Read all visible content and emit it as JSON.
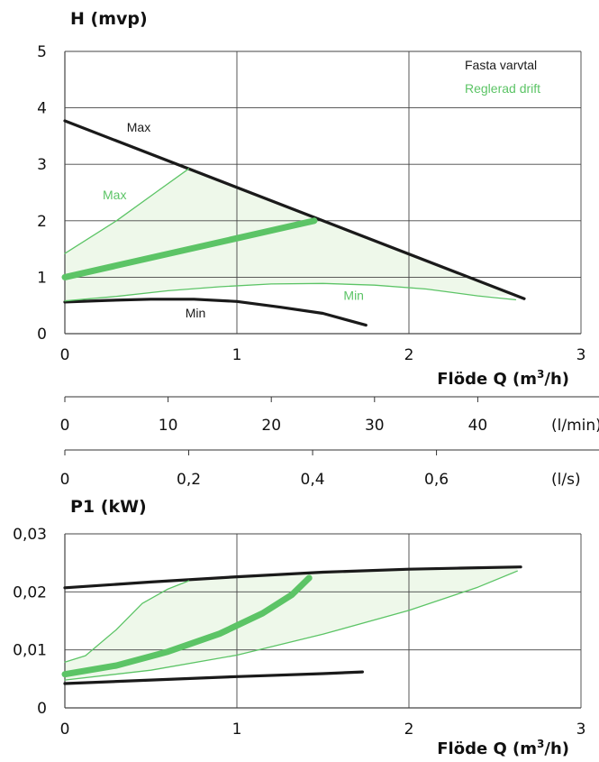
{
  "colors": {
    "fixed": "#1a1a1a",
    "regulated": "#5cc466",
    "regulated_fill": "#eef8ea",
    "grid": "#444444"
  },
  "chart_data": [
    {
      "type": "line",
      "title": "",
      "ylabel": "H (mvp)",
      "xlabel": "Flöde Q (m³/h)",
      "xlim": [
        0,
        3
      ],
      "ylim": [
        0,
        5
      ],
      "grid": true,
      "legend_position": "top-right",
      "x_ticks": [
        "0",
        "1",
        "2",
        "3"
      ],
      "y_ticks": [
        "0",
        "1",
        "2",
        "3",
        "4",
        "5"
      ],
      "legend": [
        {
          "label": "Fasta varvtal",
          "color": "#1a1a1a"
        },
        {
          "label": "Reglerad drift",
          "color": "#5cc466"
        }
      ],
      "series": [
        {
          "name": "Max",
          "group": "fixed",
          "style": "thick",
          "points": [
            [
              0,
              3.77
            ],
            [
              2.67,
              0.62
            ]
          ]
        },
        {
          "name": "Min",
          "group": "fixed",
          "style": "thick",
          "points": [
            [
              0,
              0.56
            ],
            [
              0.25,
              0.59
            ],
            [
              0.5,
              0.61
            ],
            [
              0.75,
              0.61
            ],
            [
              1.0,
              0.57
            ],
            [
              1.25,
              0.47
            ],
            [
              1.5,
              0.36
            ],
            [
              1.75,
              0.15
            ]
          ]
        },
        {
          "name": "",
          "group": "regulated",
          "style": "bold",
          "points": [
            [
              0,
              1.0
            ],
            [
              1.45,
              2.0
            ]
          ]
        },
        {
          "name": "Max",
          "group": "regulated",
          "style": "thin",
          "points": [
            [
              0,
              1.42
            ],
            [
              0.3,
              2.0
            ],
            [
              0.55,
              2.55
            ],
            [
              0.72,
              2.92
            ]
          ]
        },
        {
          "name": "Min",
          "group": "regulated",
          "style": "thin",
          "points": [
            [
              0,
              0.58
            ],
            [
              0.3,
              0.66
            ],
            [
              0.6,
              0.76
            ],
            [
              0.9,
              0.83
            ],
            [
              1.2,
              0.88
            ],
            [
              1.5,
              0.89
            ],
            [
              1.8,
              0.86
            ],
            [
              2.1,
              0.79
            ],
            [
              2.4,
              0.67
            ],
            [
              2.62,
              0.6
            ]
          ]
        }
      ],
      "region": [
        [
          0,
          1.42
        ],
        [
          0.3,
          2.0
        ],
        [
          0.55,
          2.55
        ],
        [
          0.72,
          2.92
        ],
        [
          1.0,
          2.6
        ],
        [
          1.5,
          2.0
        ],
        [
          2.0,
          1.44
        ],
        [
          2.62,
          0.68
        ],
        [
          2.4,
          0.67
        ],
        [
          2.1,
          0.79
        ],
        [
          1.8,
          0.86
        ],
        [
          1.5,
          0.89
        ],
        [
          1.2,
          0.88
        ],
        [
          0.9,
          0.83
        ],
        [
          0.6,
          0.76
        ],
        [
          0.3,
          0.66
        ],
        [
          0,
          0.58
        ]
      ],
      "annotations": [
        {
          "text": "Max",
          "group": "fixed",
          "x": 0.36,
          "y": 3.58
        },
        {
          "text": "Max",
          "group": "regulated",
          "x": 0.22,
          "y": 2.38
        },
        {
          "text": "Min",
          "group": "fixed",
          "x": 0.7,
          "y": 0.29
        },
        {
          "text": "Min",
          "group": "regulated",
          "x": 1.62,
          "y": 0.6
        }
      ]
    },
    {
      "type": "axis",
      "unit": "(l/min)",
      "ticks": [
        0,
        10,
        20,
        30,
        40
      ],
      "tick_labels": [
        "0",
        "10",
        "20",
        "30",
        "40"
      ],
      "max_value": 50
    },
    {
      "type": "axis",
      "unit": "(l/s)",
      "ticks": [
        0,
        0.2,
        0.4,
        0.6
      ],
      "tick_labels": [
        "0",
        "0,2",
        "0,4",
        "0,6"
      ],
      "max_value": 0.8333
    },
    {
      "type": "line",
      "title": "",
      "ylabel": "P1 (kW)",
      "xlabel": "Flöde Q (m³/h)",
      "xlim": [
        0,
        3
      ],
      "ylim": [
        0,
        0.03
      ],
      "grid": true,
      "x_ticks": [
        "0",
        "1",
        "2",
        "3"
      ],
      "y_ticks": [
        "0",
        "0,01",
        "0,02",
        "0,03"
      ],
      "series": [
        {
          "name": "Max",
          "group": "fixed",
          "style": "thick",
          "points": [
            [
              0,
              0.0207
            ],
            [
              0.5,
              0.0217
            ],
            [
              1.0,
              0.0226
            ],
            [
              1.5,
              0.0234
            ],
            [
              2.0,
              0.0239
            ],
            [
              2.3,
              0.0241
            ],
            [
              2.65,
              0.0243
            ]
          ]
        },
        {
          "name": "Min",
          "group": "fixed",
          "style": "thick",
          "points": [
            [
              0,
              0.0042
            ],
            [
              0.5,
              0.0048
            ],
            [
              1.0,
              0.0054
            ],
            [
              1.5,
              0.0059
            ],
            [
              1.73,
              0.0062
            ]
          ]
        },
        {
          "name": "",
          "group": "regulated",
          "style": "bold",
          "points": [
            [
              0,
              0.0058
            ],
            [
              0.3,
              0.0073
            ],
            [
              0.6,
              0.0097
            ],
            [
              0.9,
              0.0128
            ],
            [
              1.15,
              0.0163
            ],
            [
              1.32,
              0.0195
            ],
            [
              1.42,
              0.0224
            ]
          ]
        },
        {
          "name": "Max",
          "group": "regulated",
          "style": "thin",
          "points": [
            [
              0,
              0.0079
            ],
            [
              0.12,
              0.009
            ],
            [
              0.3,
              0.0135
            ],
            [
              0.45,
              0.018
            ],
            [
              0.6,
              0.0205
            ],
            [
              0.72,
              0.0219
            ]
          ]
        },
        {
          "name": "Min",
          "group": "regulated",
          "style": "thin",
          "points": [
            [
              0,
              0.0048
            ],
            [
              0.5,
              0.0065
            ],
            [
              1.0,
              0.0091
            ],
            [
              1.5,
              0.0127
            ],
            [
              2.0,
              0.0168
            ],
            [
              2.4,
              0.0208
            ],
            [
              2.63,
              0.0236
            ]
          ]
        }
      ],
      "region": [
        [
          0,
          0.0079
        ],
        [
          0.12,
          0.009
        ],
        [
          0.3,
          0.0135
        ],
        [
          0.45,
          0.018
        ],
        [
          0.6,
          0.0205
        ],
        [
          0.72,
          0.0219
        ],
        [
          1.0,
          0.0225
        ],
        [
          1.5,
          0.0232
        ],
        [
          2.0,
          0.0237
        ],
        [
          2.63,
          0.0241
        ],
        [
          2.63,
          0.0236
        ],
        [
          2.4,
          0.0208
        ],
        [
          2.0,
          0.0168
        ],
        [
          1.5,
          0.0127
        ],
        [
          1.0,
          0.0091
        ],
        [
          0.5,
          0.0065
        ],
        [
          0,
          0.0048
        ]
      ]
    }
  ]
}
